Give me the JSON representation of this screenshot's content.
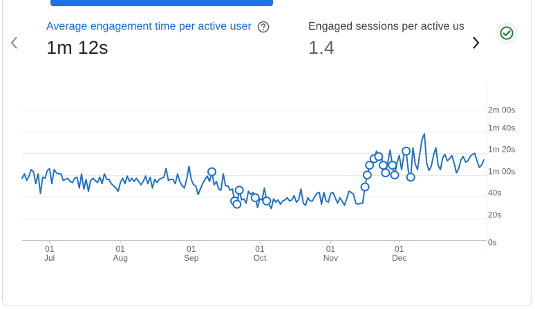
{
  "metrics": [
    {
      "label": "Average engagement time per active user",
      "value": "1m 12s",
      "selected": true
    },
    {
      "label": "Engaged sessions per active user",
      "value": "1.4",
      "selected": false
    }
  ],
  "icons": {
    "prev": "chevron-left-icon",
    "next": "chevron-right-icon",
    "help": "help-circle-icon",
    "status": "check-circle-icon"
  },
  "colors": {
    "accent": "#1a73e8",
    "line": "#1e6fd0",
    "selected_label": "#1967d2",
    "status_ok": "#188038",
    "grid": "#e8eaed"
  },
  "chart_data": {
    "type": "line",
    "title": "",
    "xlabel": "",
    "ylabel": "",
    "y_unit": "seconds",
    "ylim": [
      0,
      140
    ],
    "grid": true,
    "y_axis_position": "right",
    "y_ticks": [
      {
        "value": 0,
        "label": "0s"
      },
      {
        "value": 20,
        "label": "20s"
      },
      {
        "value": 40,
        "label": "40s"
      },
      {
        "value": 60,
        "label": "1m 00s"
      },
      {
        "value": 80,
        "label": "1m 20s"
      },
      {
        "value": 100,
        "label": "1m 40s"
      },
      {
        "value": 120,
        "label": "2m 00s"
      }
    ],
    "x_ticks": [
      {
        "index": 12,
        "day": "01",
        "month": "Jul"
      },
      {
        "index": 43,
        "day": "01",
        "month": "Aug"
      },
      {
        "index": 74,
        "day": "01",
        "month": "Sep"
      },
      {
        "index": 104,
        "day": "01",
        "month": "Oct"
      },
      {
        "index": 135,
        "day": "01",
        "month": "Nov"
      },
      {
        "index": 165,
        "day": "01",
        "month": "Dec"
      }
    ],
    "anomaly_indices": [
      83,
      93,
      94,
      95,
      102,
      107,
      150,
      151,
      152,
      154,
      156,
      158,
      159,
      162,
      163,
      168,
      170
    ],
    "series": [
      {
        "values": [
          57,
          61,
          55,
          59,
          65,
          63,
          52,
          61,
          43,
          58,
          57,
          64,
          66,
          52,
          65,
          62,
          61,
          61,
          55,
          56,
          57,
          54,
          53,
          57,
          58,
          48,
          61,
          47,
          56,
          45,
          55,
          57,
          55,
          53,
          58,
          52,
          61,
          56,
          56,
          52,
          50,
          48,
          45,
          53,
          57,
          52,
          59,
          54,
          57,
          54,
          57,
          54,
          51,
          54,
          59,
          52,
          58,
          48,
          56,
          53,
          56,
          57,
          58,
          66,
          55,
          56,
          56,
          52,
          61,
          54,
          50,
          48,
          56,
          68,
          56,
          51,
          50,
          42,
          47,
          52,
          56,
          59,
          54,
          63,
          51,
          54,
          47,
          46,
          61,
          50,
          50,
          46,
          47,
          36,
          33,
          46,
          37,
          38,
          34,
          45,
          42,
          44,
          39,
          30,
          38,
          37,
          48,
          36,
          33,
          29,
          38,
          35,
          37,
          33,
          36,
          37,
          39,
          36,
          37,
          41,
          35,
          37,
          47,
          34,
          32,
          39,
          36,
          36,
          40,
          43,
          44,
          33,
          44,
          36,
          35,
          43,
          44,
          39,
          34,
          39,
          36,
          32,
          38,
          45,
          44,
          42,
          34,
          33,
          34,
          34,
          49,
          60,
          69,
          71,
          75,
          82,
          77,
          78,
          69,
          62,
          72,
          83,
          69,
          60,
          71,
          78,
          65,
          78,
          82,
          63,
          58,
          85,
          70,
          65,
          80,
          93,
          98,
          71,
          64,
          68,
          78,
          85,
          69,
          65,
          76,
          79,
          73,
          75,
          78,
          71,
          62,
          66,
          74,
          77,
          72,
          73,
          77,
          79,
          80,
          73,
          67,
          69,
          74
        ]
      }
    ]
  }
}
